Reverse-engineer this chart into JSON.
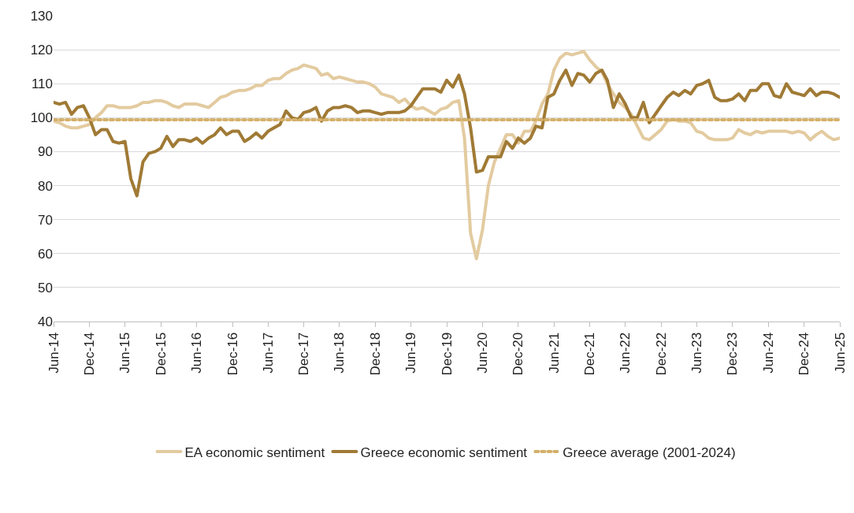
{
  "chart_data": {
    "type": "line",
    "xlim": [
      "2014-06",
      "2025-06"
    ],
    "ylim": [
      40,
      130
    ],
    "yticks": [
      40,
      50,
      60,
      70,
      80,
      90,
      100,
      110,
      120,
      130
    ],
    "xticks": [
      {
        "value": "2014-06",
        "label": "Jun-14"
      },
      {
        "value": "2014-12",
        "label": "Dec-14"
      },
      {
        "value": "2015-06",
        "label": "Jun-15"
      },
      {
        "value": "2015-12",
        "label": "Dec-15"
      },
      {
        "value": "2016-06",
        "label": "Jun-16"
      },
      {
        "value": "2016-12",
        "label": "Dec-16"
      },
      {
        "value": "2017-06",
        "label": "Jun-17"
      },
      {
        "value": "2017-12",
        "label": "Dec-17"
      },
      {
        "value": "2018-06",
        "label": "Jun-18"
      },
      {
        "value": "2018-12",
        "label": "Dec-18"
      },
      {
        "value": "2019-06",
        "label": "Jun-19"
      },
      {
        "value": "2019-12",
        "label": "Dec-19"
      },
      {
        "value": "2020-06",
        "label": "Jun-20"
      },
      {
        "value": "2020-12",
        "label": "Dec-20"
      },
      {
        "value": "2021-06",
        "label": "Jun-21"
      },
      {
        "value": "2021-12",
        "label": "Dec-21"
      },
      {
        "value": "2022-06",
        "label": "Jun-22"
      },
      {
        "value": "2022-12",
        "label": "Dec-22"
      },
      {
        "value": "2023-06",
        "label": "Jun-23"
      },
      {
        "value": "2023-12",
        "label": "Dec-23"
      },
      {
        "value": "2024-06",
        "label": "Jun-24"
      },
      {
        "value": "2024-12",
        "label": "Dec-24"
      },
      {
        "value": "2025-06",
        "label": "Jun-25"
      }
    ],
    "x": [
      "2014-06",
      "2014-07",
      "2014-08",
      "2014-09",
      "2014-10",
      "2014-11",
      "2014-12",
      "2015-01",
      "2015-02",
      "2015-03",
      "2015-04",
      "2015-05",
      "2015-06",
      "2015-07",
      "2015-08",
      "2015-09",
      "2015-10",
      "2015-11",
      "2015-12",
      "2016-01",
      "2016-02",
      "2016-03",
      "2016-04",
      "2016-05",
      "2016-06",
      "2016-07",
      "2016-08",
      "2016-09",
      "2016-10",
      "2016-11",
      "2016-12",
      "2017-01",
      "2017-02",
      "2017-03",
      "2017-04",
      "2017-05",
      "2017-06",
      "2017-07",
      "2017-08",
      "2017-09",
      "2017-10",
      "2017-11",
      "2017-12",
      "2018-01",
      "2018-02",
      "2018-03",
      "2018-04",
      "2018-05",
      "2018-06",
      "2018-07",
      "2018-08",
      "2018-09",
      "2018-10",
      "2018-11",
      "2018-12",
      "2019-01",
      "2019-02",
      "2019-03",
      "2019-04",
      "2019-05",
      "2019-06",
      "2019-07",
      "2019-08",
      "2019-09",
      "2019-10",
      "2019-11",
      "2019-12",
      "2020-01",
      "2020-02",
      "2020-03",
      "2020-04",
      "2020-05",
      "2020-06",
      "2020-07",
      "2020-08",
      "2020-09",
      "2020-10",
      "2020-11",
      "2020-12",
      "2021-01",
      "2021-02",
      "2021-03",
      "2021-04",
      "2021-05",
      "2021-06",
      "2021-07",
      "2021-08",
      "2021-09",
      "2021-10",
      "2021-11",
      "2021-12",
      "2022-01",
      "2022-02",
      "2022-03",
      "2022-04",
      "2022-05",
      "2022-06",
      "2022-07",
      "2022-08",
      "2022-09",
      "2022-10",
      "2022-11",
      "2022-12",
      "2023-01",
      "2023-02",
      "2023-03",
      "2023-04",
      "2023-05",
      "2023-06",
      "2023-07",
      "2023-08",
      "2023-09",
      "2023-10",
      "2023-11",
      "2023-12",
      "2024-01",
      "2024-02",
      "2024-03",
      "2024-04",
      "2024-05",
      "2024-06",
      "2024-07",
      "2024-08",
      "2024-09",
      "2024-10",
      "2024-11",
      "2024-12",
      "2025-01",
      "2025-02",
      "2025-03",
      "2025-04",
      "2025-05",
      "2025-06"
    ],
    "grid": "y",
    "legend": "bottom",
    "marker": "none",
    "line_style": "solid",
    "series": [
      {
        "name": "EA economic sentiment",
        "color": "#e3cba0",
        "values": [
          99,
          98.5,
          97.5,
          97,
          97,
          97.5,
          98,
          100,
          101.5,
          103.5,
          103.5,
          103,
          103,
          103,
          103.5,
          104.5,
          104.5,
          105,
          105,
          104.5,
          103.5,
          103,
          104,
          104,
          104,
          103.5,
          103,
          104.5,
          106,
          106.5,
          107.5,
          108,
          108,
          108.5,
          109.5,
          109.5,
          111,
          111.5,
          111.5,
          113,
          114,
          114.5,
          115.5,
          115,
          114.5,
          112.5,
          113,
          111.5,
          112,
          111.5,
          111,
          110.5,
          110.5,
          110,
          109,
          107,
          106.5,
          106,
          104.5,
          105.5,
          103.5,
          102.5,
          103,
          102,
          101,
          102.5,
          103,
          104.5,
          105,
          94,
          66,
          58.5,
          67,
          80,
          87,
          91,
          95,
          95,
          92.5,
          96,
          96,
          99,
          104,
          107,
          114,
          117.5,
          119,
          118.5,
          119,
          119.5,
          117,
          115,
          113.5,
          110,
          107,
          104.5,
          103,
          101,
          97.5,
          94,
          93.5,
          95,
          96.5,
          99,
          99.5,
          99,
          99,
          98.5,
          96,
          95.5,
          94,
          93.5,
          93.5,
          93.5,
          94,
          96.5,
          95.5,
          95,
          96,
          95.5,
          96,
          96,
          96,
          96,
          95.5,
          96,
          95.5,
          93.5,
          95,
          96,
          94.5,
          93.5,
          94
        ]
      },
      {
        "name": "Greece economic sentiment",
        "color": "#a07a35",
        "values": [
          104.5,
          104,
          104.5,
          101,
          103,
          103.5,
          100,
          95,
          96.5,
          96.5,
          93,
          92.5,
          93,
          82,
          77,
          87,
          89.5,
          90,
          91,
          94.5,
          91.5,
          93.5,
          93.5,
          93,
          94,
          92.5,
          94,
          95,
          97,
          95,
          96,
          96,
          93,
          94,
          95.5,
          94,
          96,
          97,
          98,
          102,
          100,
          99.5,
          101.5,
          102,
          103,
          99,
          102,
          103,
          103,
          103.5,
          103,
          101.5,
          102,
          102,
          101.5,
          101,
          101.5,
          101.5,
          101.5,
          102,
          103.5,
          106,
          108.5,
          108.5,
          108.5,
          107.5,
          111,
          109,
          112.5,
          107,
          97,
          84,
          84.5,
          88.5,
          88.5,
          88.5,
          93,
          91,
          94,
          92.5,
          94,
          97.5,
          97,
          106,
          107,
          111,
          114,
          109.5,
          113,
          112.5,
          110.5,
          113,
          114,
          111,
          103,
          107,
          104,
          100,
          100,
          104.5,
          98.5,
          101,
          103.5,
          106,
          107.5,
          106.5,
          108,
          107,
          109.5,
          110,
          111,
          106,
          105,
          105,
          105.5,
          107,
          105,
          108,
          108,
          110,
          110,
          106.5,
          106,
          110,
          107.5,
          107,
          106.5,
          108.5,
          106.5,
          107.5,
          107.5,
          107,
          106
        ]
      }
    ],
    "ref_lines": [
      {
        "axis": "y",
        "value": 99.4,
        "label": "Greece average (2001-2024)",
        "color": "#d4b06a",
        "line_style": "dotted"
      }
    ]
  }
}
